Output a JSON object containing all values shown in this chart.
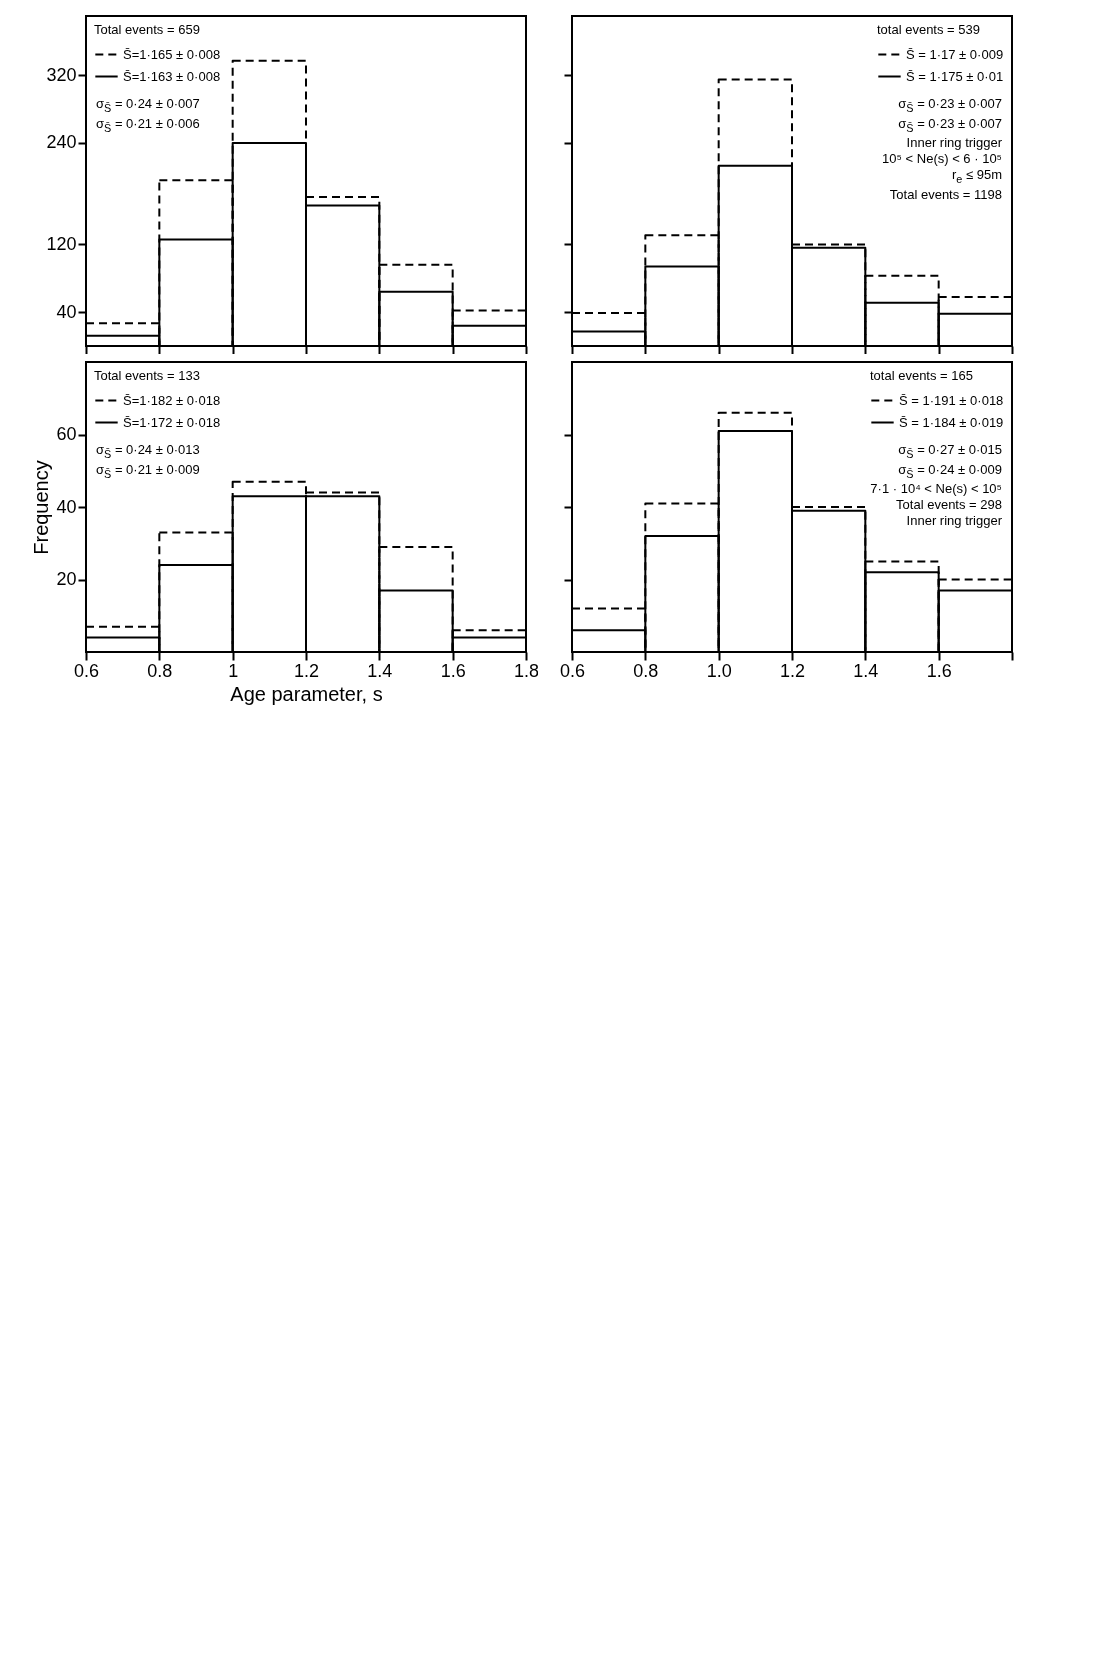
{
  "chart_data": [
    {
      "type": "histogram",
      "bins": [
        0.6,
        0.8,
        1.0,
        1.2,
        1.4,
        1.6,
        1.8
      ],
      "series": [
        {
          "name": "S̄=1·165 ± 0·008",
          "color": "#000000",
          "line_style": "dashed",
          "values": [
            27,
            196,
            337,
            176,
            96,
            42
          ]
        },
        {
          "name": "S̄=1·163 ± 0·008",
          "color": "#000000",
          "line_style": "solid",
          "values": [
            12,
            126,
            240,
            166,
            64,
            24
          ]
        }
      ],
      "legend": "top left",
      "legend_title": "Total events = 659",
      "annotations": [
        "σ$_{S̄}$ = 0·24 ± 0·007",
        "σ$_{S̄}$ = 0·21 ± 0·006"
      ],
      "xlim": [
        0.6,
        1.8
      ],
      "ylim": [
        0,
        390
      ],
      "xticks": [
        0.6,
        0.8,
        1,
        1.2,
        1.4,
        1.6,
        1.8
      ],
      "yticks": [
        40,
        120,
        240,
        320
      ],
      "tick_labels": "y"
    },
    {
      "type": "histogram",
      "bins": [
        0.6,
        0.8,
        1.0,
        1.2,
        1.4,
        1.6,
        1.8
      ],
      "series": [
        {
          "name": "S̄ = 1·17 ± 0·009",
          "color": "#000000",
          "line_style": "dashed",
          "values": [
            39,
            131,
            315,
            120,
            83,
            58
          ]
        },
        {
          "name": "S̄ = 1·175 ± 0·01",
          "color": "#000000",
          "line_style": "solid",
          "values": [
            17,
            94,
            213,
            116,
            51,
            38
          ]
        }
      ],
      "legend": "top right",
      "legend_title": "total events = 539",
      "annotations": [
        "σ$_{S̄}$ = 0·23 ± 0·007",
        "σ$_{S̄}$ = 0·23 ± 0·007",
        "Inner ring trigger",
        "10⁵ < Ne(s) < 6 · 10⁵",
        "r$_{e}$ ≤ 95m",
        "Total events = 1198"
      ],
      "xlim": [
        0.6,
        1.8
      ],
      "ylim": [
        0,
        390
      ],
      "xticks": [
        0.6,
        0.8,
        1,
        1.2,
        1.4,
        1.6,
        1.8
      ],
      "yticks": [
        40,
        120,
        240,
        320
      ],
      "tick_labels": false
    },
    {
      "type": "histogram",
      "bins": [
        0.6,
        0.8,
        1.0,
        1.2,
        1.4,
        1.6,
        1.8
      ],
      "series": [
        {
          "name": "S̄=1·182 ± 0·018",
          "color": "#000000",
          "line_style": "dashed",
          "values": [
            7,
            33,
            47,
            44,
            29,
            6
          ]
        },
        {
          "name": "S̄=1·172 ± 0·018",
          "color": "#000000",
          "line_style": "solid",
          "values": [
            4,
            24,
            43,
            43,
            17,
            4
          ]
        }
      ],
      "legend": "top left",
      "legend_title": "Total events = 133",
      "annotations": [
        "σ$_{S̄}$ = 0·24 ± 0·013",
        "σ$_{S̄}$ = 0·21 ± 0·009"
      ],
      "xlabel": "Age parameter, s",
      "ylabel": "Frequency",
      "xlim": [
        0.6,
        1.8
      ],
      "ylim": [
        0,
        80
      ],
      "xticks": [
        0.6,
        0.8,
        1,
        1.2,
        1.4,
        1.6,
        1.8
      ],
      "yticks": [
        20,
        40,
        60
      ]
    },
    {
      "type": "histogram",
      "bins": [
        0.6,
        0.8,
        1.0,
        1.2,
        1.4,
        1.6,
        1.8
      ],
      "series": [
        {
          "name": "S̄ = 1·191 ± 0·018",
          "color": "#000000",
          "line_style": "dashed",
          "values": [
            12,
            41,
            66,
            40,
            25,
            20
          ]
        },
        {
          "name": "S̄ = 1·184 ± 0·019",
          "color": "#000000",
          "line_style": "solid",
          "values": [
            6,
            32,
            61,
            39,
            22,
            17
          ]
        }
      ],
      "legend": "top right",
      "legend_title": "total events = 165",
      "annotations": [
        "σ$_{S̄}$ = 0·27 ± 0·015",
        "σ$_{S̄}$ = 0·24 ± 0·009",
        "7·1 · 10⁴ < Ne(s) < 10⁵",
        "Total events = 298",
        "Inner ring trigger"
      ],
      "xlim": [
        0.6,
        1.8
      ],
      "ylim": [
        0,
        80
      ],
      "xticks": [
        0.6,
        0.8,
        {
          "value": 1,
          "label": "1.0"
        },
        1.2,
        1.4,
        1.6,
        {
          "value": 1.8,
          "label": null
        }
      ],
      "yticks": [
        20,
        40,
        60
      ],
      "tick_labels": "x"
    }
  ]
}
